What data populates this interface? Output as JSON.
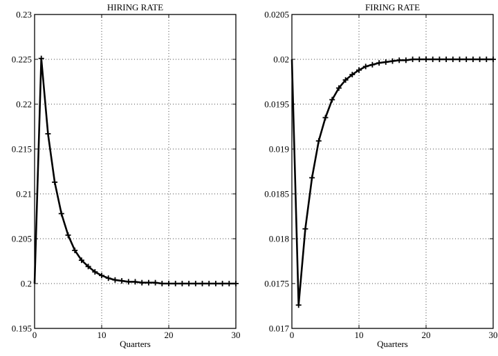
{
  "chart_data": [
    {
      "type": "line",
      "title": "HIRING RATE",
      "xlabel": "Quarters",
      "ylabel": "",
      "xlim": [
        0,
        30
      ],
      "ylim": [
        0.195,
        0.23
      ],
      "xticks": [
        0,
        10,
        20,
        30
      ],
      "xtick_labels": [
        "0",
        "10",
        "20",
        "30"
      ],
      "yticks": [
        0.195,
        0.2,
        0.205,
        0.21,
        0.215,
        0.22,
        0.225,
        0.23
      ],
      "ytick_labels": [
        "0.195",
        "0.2",
        "0.205",
        "0.21",
        "0.215",
        "0.22",
        "0.225",
        "0.23"
      ],
      "grid": true,
      "x": [
        0,
        1,
        2,
        3,
        4,
        5,
        6,
        7,
        8,
        9,
        10,
        11,
        12,
        13,
        14,
        15,
        16,
        17,
        18,
        19,
        20,
        21,
        22,
        23,
        24,
        25,
        26,
        27,
        28,
        29,
        30
      ],
      "series": [
        {
          "marker": "+",
          "values": [
            0.2,
            0.2251,
            0.2167,
            0.2113,
            0.2078,
            0.2054,
            0.2037,
            0.2026,
            0.2019,
            0.2013,
            0.2009,
            0.2006,
            0.2004,
            0.2003,
            0.2002,
            0.2002,
            0.2001,
            0.2001,
            0.2001,
            0.2,
            0.2,
            0.2,
            0.2,
            0.2,
            0.2,
            0.2,
            0.2,
            0.2,
            0.2,
            0.2,
            0.2
          ]
        }
      ]
    },
    {
      "type": "line",
      "title": "FIRING RATE",
      "xlabel": "Quarters",
      "ylabel": "",
      "xlim": [
        0,
        30
      ],
      "ylim": [
        0.017,
        0.0205
      ],
      "xticks": [
        0,
        10,
        20,
        30
      ],
      "xtick_labels": [
        "0",
        "10",
        "20",
        "30"
      ],
      "yticks": [
        0.017,
        0.0175,
        0.018,
        0.0185,
        0.019,
        0.0195,
        0.02,
        0.0205
      ],
      "ytick_labels": [
        "0.017",
        "0.0175",
        "0.018",
        "0.0185",
        "0.019",
        "0.0195",
        "0.02",
        "0.0205"
      ],
      "grid": true,
      "x": [
        0,
        1,
        2,
        3,
        4,
        5,
        6,
        7,
        8,
        9,
        10,
        11,
        12,
        13,
        14,
        15,
        16,
        17,
        18,
        19,
        20,
        21,
        22,
        23,
        24,
        25,
        26,
        27,
        28,
        29,
        30
      ],
      "series": [
        {
          "marker": "+",
          "values": [
            0.02,
            0.01726,
            0.01811,
            0.01868,
            0.01909,
            0.01935,
            0.01955,
            0.01968,
            0.01977,
            0.01983,
            0.01988,
            0.01992,
            0.01994,
            0.01996,
            0.01997,
            0.01998,
            0.01999,
            0.01999,
            0.02,
            0.02,
            0.02,
            0.02,
            0.02,
            0.02,
            0.02,
            0.02,
            0.02,
            0.02,
            0.02,
            0.02,
            0.02
          ]
        }
      ]
    }
  ]
}
